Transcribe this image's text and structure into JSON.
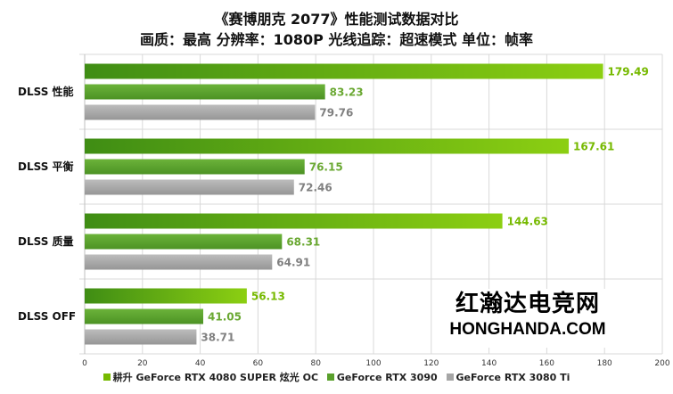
{
  "chart_data": {
    "type": "bar",
    "orientation": "horizontal",
    "title": "《赛博朋克 2077》性能测试数据对比",
    "subtitle": "画质：最高 分辨率：1080P 光线追踪：超速模式 单位：帧率",
    "categories": [
      "DLSS 性能",
      "DLSS 平衡",
      "DLSS 质量",
      "DLSS OFF"
    ],
    "series": [
      {
        "name": "耕升 GeForce RTX 4080 SUPER 炫光 OC",
        "values": [
          179.49,
          167.61,
          144.63,
          56.13
        ],
        "color": "#76b900",
        "label_color": "#76b900"
      },
      {
        "name": "GeForce RTX 3090",
        "values": [
          83.23,
          76.15,
          68.31,
          41.05
        ],
        "color": "#5aa02c",
        "label_color": "#6aa832"
      },
      {
        "name": "GeForce RTX 3080 Ti",
        "values": [
          79.76,
          72.46,
          64.91,
          38.71
        ],
        "color": "#a6a6a6",
        "label_color": "#808080"
      }
    ],
    "xlim": [
      0,
      200
    ],
    "xticks": [
      0,
      20,
      40,
      60,
      80,
      100,
      120,
      140,
      160,
      180,
      200
    ],
    "grid": true,
    "legend_position": "bottom"
  },
  "watermark": {
    "text_cn": "红瀚达电竞网",
    "text_en": "HONGHANDA.COM"
  }
}
